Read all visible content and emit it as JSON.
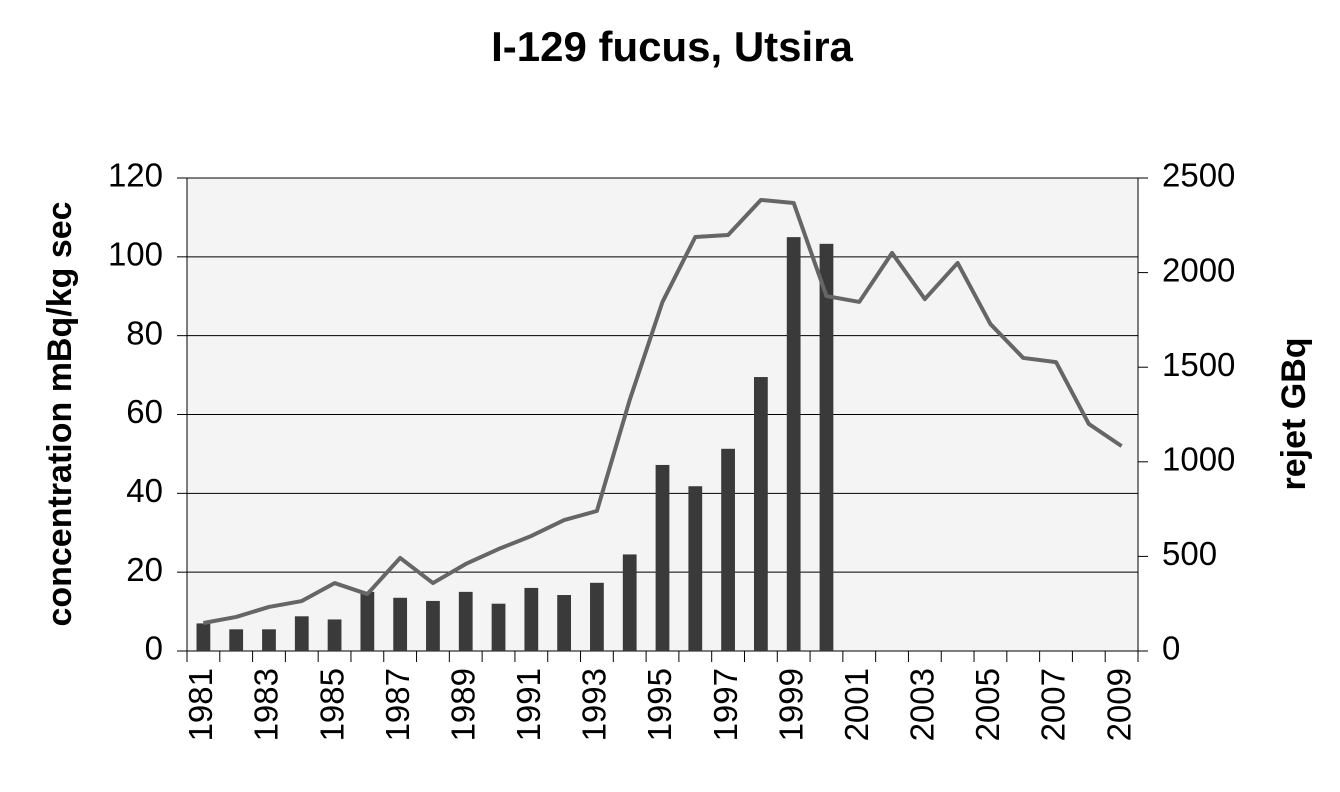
{
  "chart_data": {
    "type": "bar",
    "title": "I-129 fucus, Utsira",
    "y_label": "concentration mBq/kg sec",
    "y2_label": "rejet GBq",
    "categories": [
      "1981",
      null,
      "1983",
      null,
      "1985",
      null,
      "1987",
      null,
      "1989",
      null,
      "1991",
      null,
      "1993",
      null,
      "1995",
      null,
      "1997",
      null,
      "1999",
      null,
      "2001",
      null,
      "2003",
      null,
      "2005",
      null,
      "2007",
      null,
      "2009"
    ],
    "series": [
      {
        "type": "bar",
        "color": "#3a3a3a",
        "values": [
          7,
          5.5,
          5.5,
          8.8,
          8,
          15,
          13.5,
          12.7,
          15,
          12,
          16,
          14.2,
          17.3,
          24.5,
          47.2,
          41.8,
          51.3,
          69.5,
          105,
          103.3,
          null,
          null,
          null,
          null,
          null,
          null,
          null,
          null,
          null
        ]
      },
      {
        "type": "line",
        "axis": "y2",
        "color": "#666666",
        "values": [
          148,
          180,
          233,
          264,
          359,
          301,
          492,
          359,
          460,
          539,
          608,
          692,
          740,
          1327,
          1845,
          2188,
          2199,
          2384,
          2368,
          1876,
          1845,
          2104,
          1860,
          2051,
          1728,
          1549,
          1527,
          1200,
          1083
        ]
      }
    ],
    "ylim": [
      0,
      120
    ],
    "yticks": [
      0,
      20,
      40,
      60,
      80,
      100,
      120
    ],
    "y2lim": [
      0,
      2500
    ],
    "y2ticks": [
      0,
      500,
      1000,
      1500,
      2000,
      2500
    ],
    "grid": true
  }
}
